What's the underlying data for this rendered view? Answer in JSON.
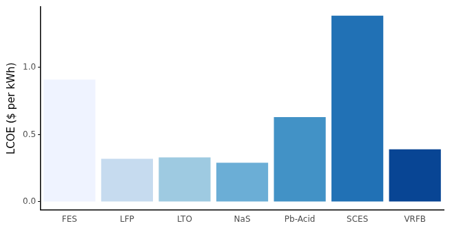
{
  "chart_data": {
    "type": "bar",
    "y_label": "LCOE ($ per kWh)",
    "categories": [
      "FES",
      "LFP",
      "LTO",
      "NaS",
      "Pb-Acid",
      "SCES",
      "VRFB"
    ],
    "values": [
      0.91,
      0.32,
      0.33,
      0.29,
      0.63,
      1.385,
      0.39
    ],
    "colors": [
      "#eff3ff",
      "#c6dbef",
      "#9ecae1",
      "#6baed6",
      "#4292c6",
      "#2171b5",
      "#084594"
    ],
    "ylim": [
      -0.06,
      1.45
    ],
    "yticks": [
      {
        "value": 0,
        "label": "0.0"
      },
      {
        "value": 0.5,
        "label": "0.5"
      },
      {
        "value": 1,
        "label": "1.0"
      }
    ],
    "grid": false
  }
}
